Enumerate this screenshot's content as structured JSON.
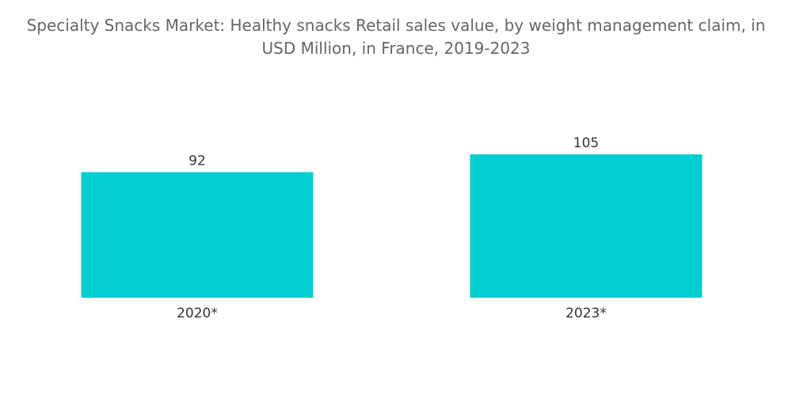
{
  "chart_data": {
    "type": "bar",
    "title_lines": [
      "Specialty Snacks Market: Healthy snacks Retail sales value, by weight management claim, in",
      "USD Million, in France, 2019-2023"
    ],
    "categories": [
      "2020*",
      "2023*"
    ],
    "values": [
      92,
      105
    ],
    "data_labels": [
      "92",
      "105"
    ],
    "xlabel": "",
    "ylabel": "",
    "ylim": [
      0,
      105
    ],
    "grid": false,
    "bar_color": "#00CED1"
  }
}
